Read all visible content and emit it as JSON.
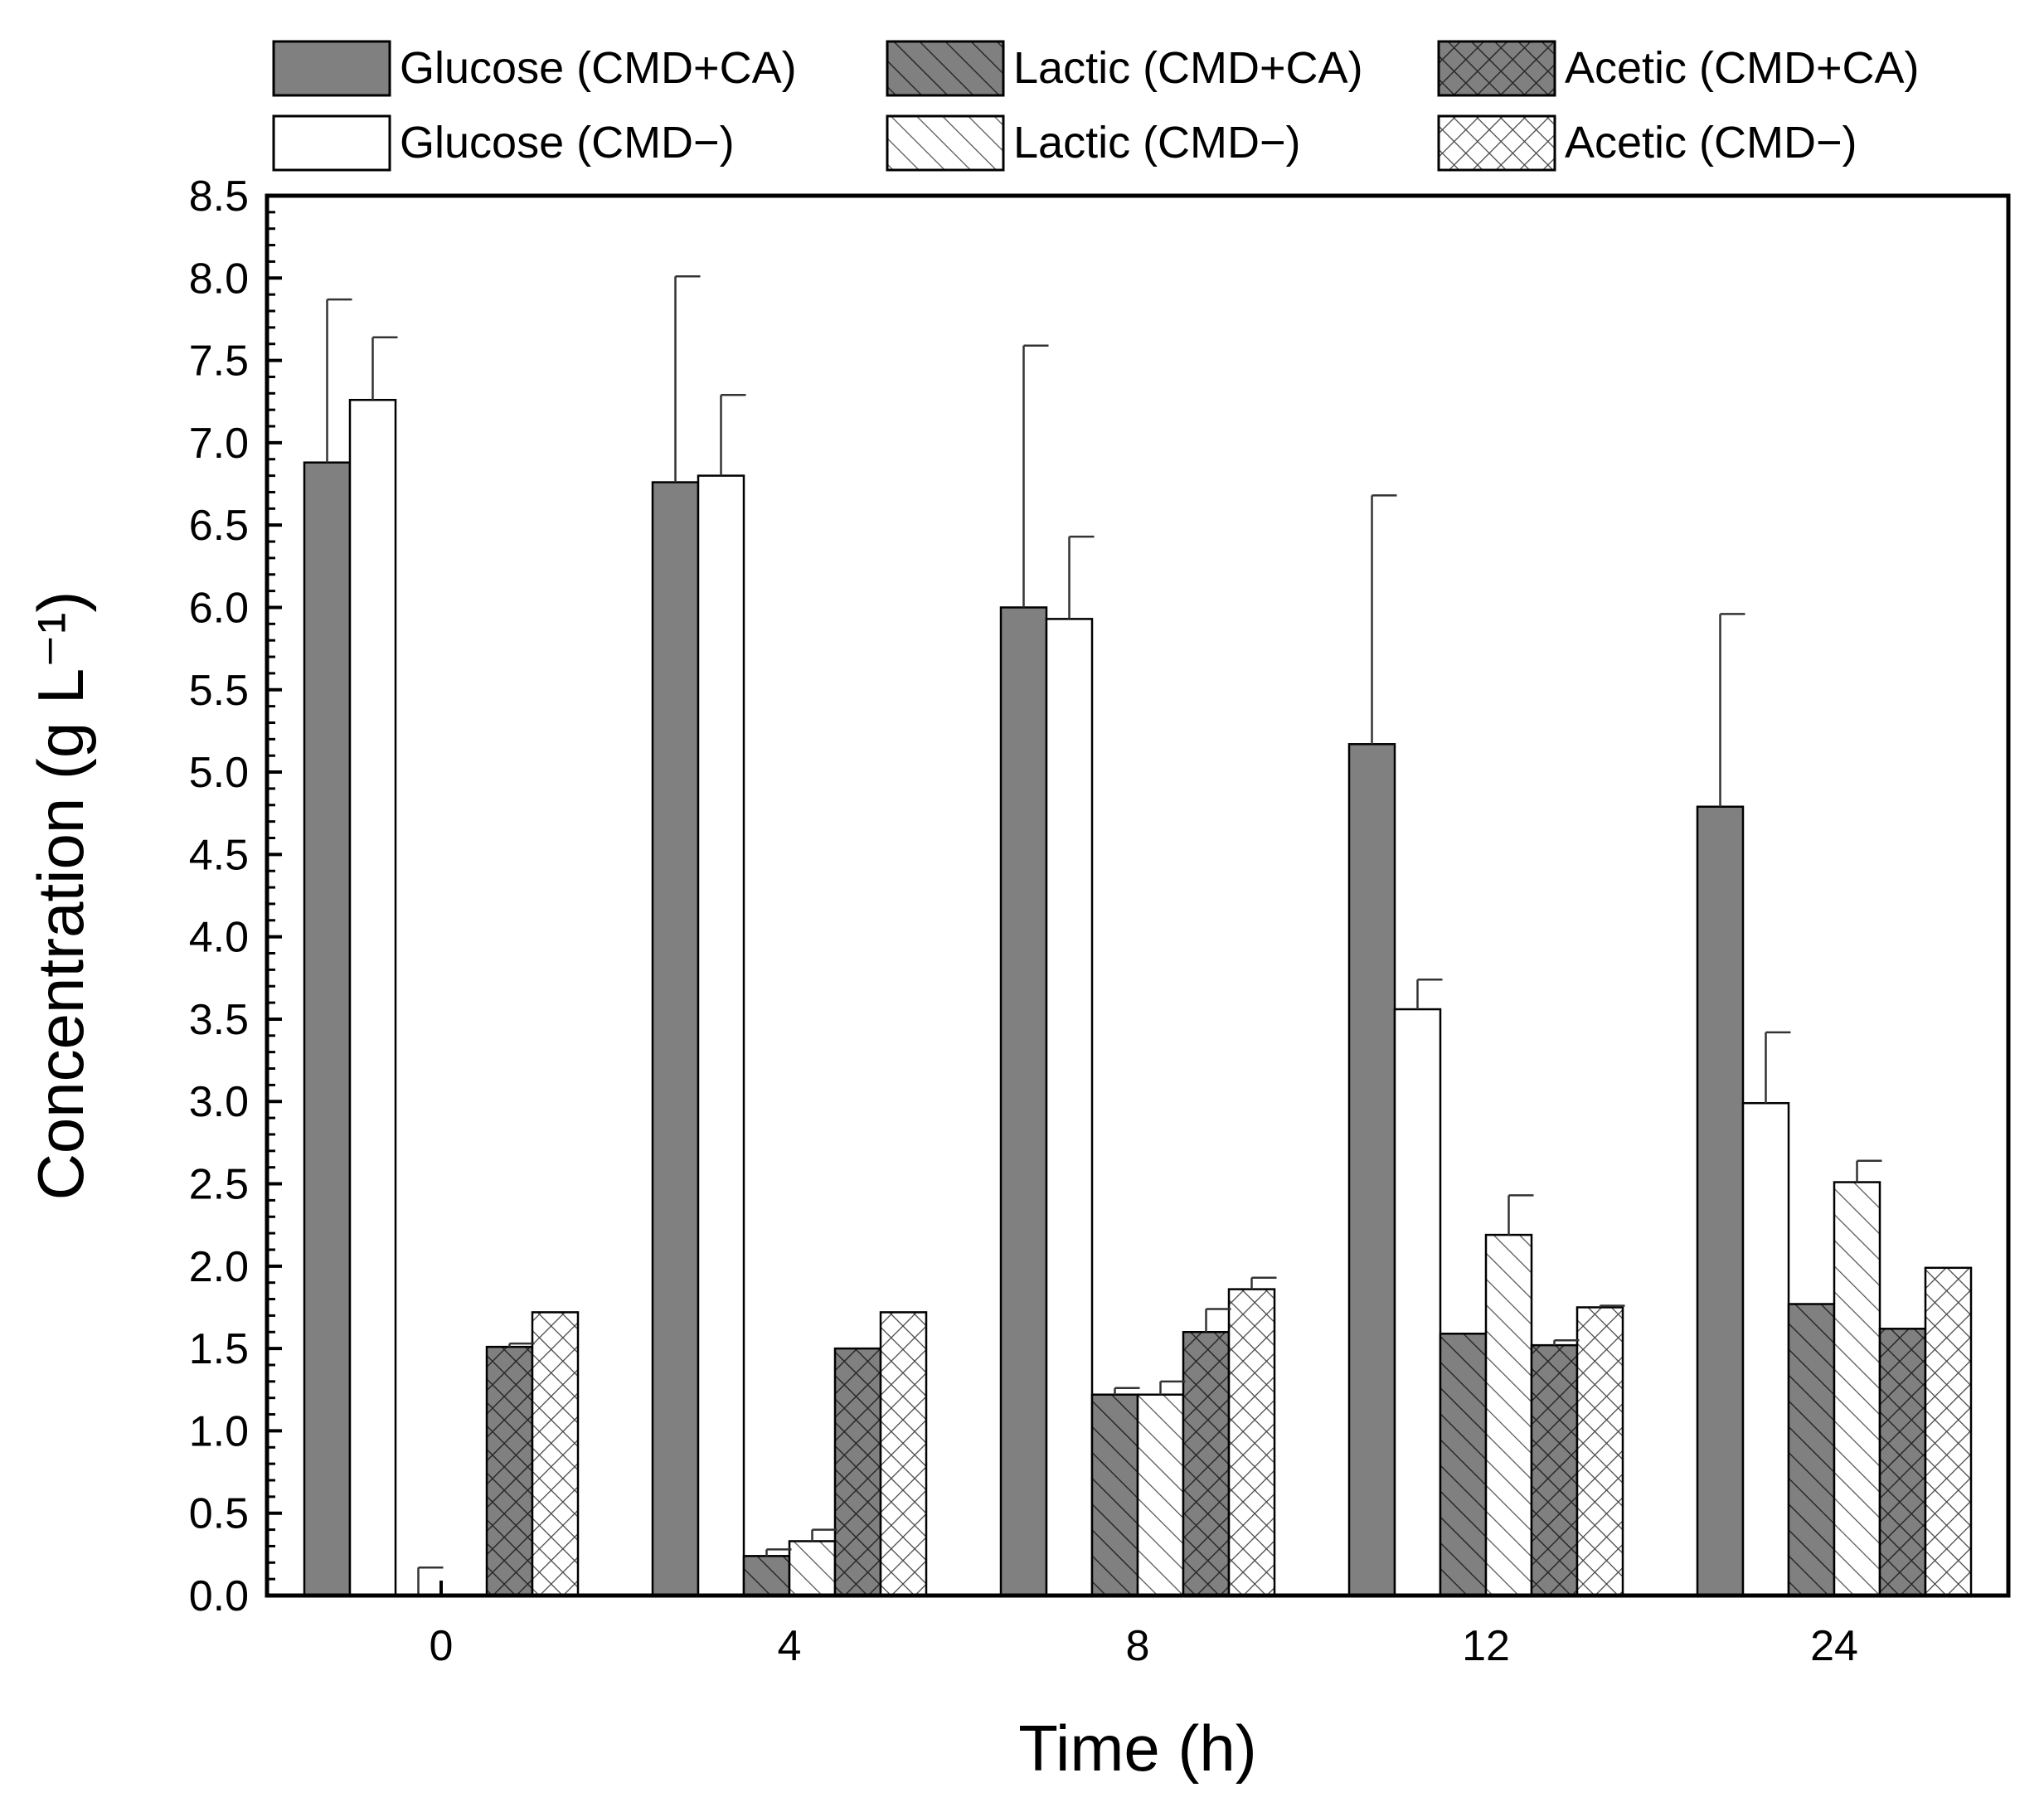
{
  "chart_data": {
    "type": "bar",
    "title": "",
    "xlabel": "Time (h)",
    "ylabel": "Concentration (g L⁻¹)",
    "ylim": [
      0,
      8.5
    ],
    "yticks": [
      "0.0",
      "0.5",
      "1.0",
      "1.5",
      "2.0",
      "2.5",
      "3.0",
      "3.5",
      "4.0",
      "4.5",
      "5.0",
      "5.5",
      "6.0",
      "6.5",
      "7.0",
      "7.5",
      "8.0",
      "8.5"
    ],
    "categories": [
      "0",
      "4",
      "8",
      "12",
      "24"
    ],
    "legend_position": "top",
    "series": [
      {
        "name": "Glucose (CMD+CA)",
        "fill": "#808080",
        "pattern": "solid",
        "values": [
          6.88,
          6.76,
          6.0,
          5.17,
          4.79
        ],
        "errors": [
          0.99,
          1.25,
          1.59,
          1.51,
          1.17
        ]
      },
      {
        "name": "Glucose (CMD−)",
        "fill": "#ffffff",
        "pattern": "solid",
        "values": [
          7.26,
          6.8,
          5.93,
          3.56,
          2.99
        ],
        "errors": [
          0.38,
          0.49,
          0.5,
          0.18,
          0.43
        ]
      },
      {
        "name": "Lactic (CMD+CA)",
        "fill": "#808080",
        "pattern": "hatch",
        "values": [
          0.0,
          0.24,
          1.22,
          1.59,
          1.77
        ],
        "errors": [
          0.17,
          0.04,
          0.04,
          0.0,
          0.0
        ]
      },
      {
        "name": "Lactic (CMD−)",
        "fill": "#ffffff",
        "pattern": "hatch",
        "values": [
          0.0,
          0.33,
          1.22,
          2.19,
          2.51
        ],
        "errors": [
          0.0,
          0.07,
          0.08,
          0.24,
          0.13
        ]
      },
      {
        "name": "Acetic (CMD+CA)",
        "fill": "#808080",
        "pattern": "cross",
        "values": [
          1.51,
          1.5,
          1.6,
          1.52,
          1.62
        ],
        "errors": [
          0.02,
          0.0,
          0.14,
          0.03,
          0.0
        ]
      },
      {
        "name": "Acetic (CMD−)",
        "fill": "#ffffff",
        "pattern": "cross",
        "values": [
          1.72,
          1.72,
          1.86,
          1.75,
          1.99
        ],
        "errors": [
          0.0,
          0.0,
          0.07,
          0.01,
          0.0
        ]
      }
    ]
  }
}
